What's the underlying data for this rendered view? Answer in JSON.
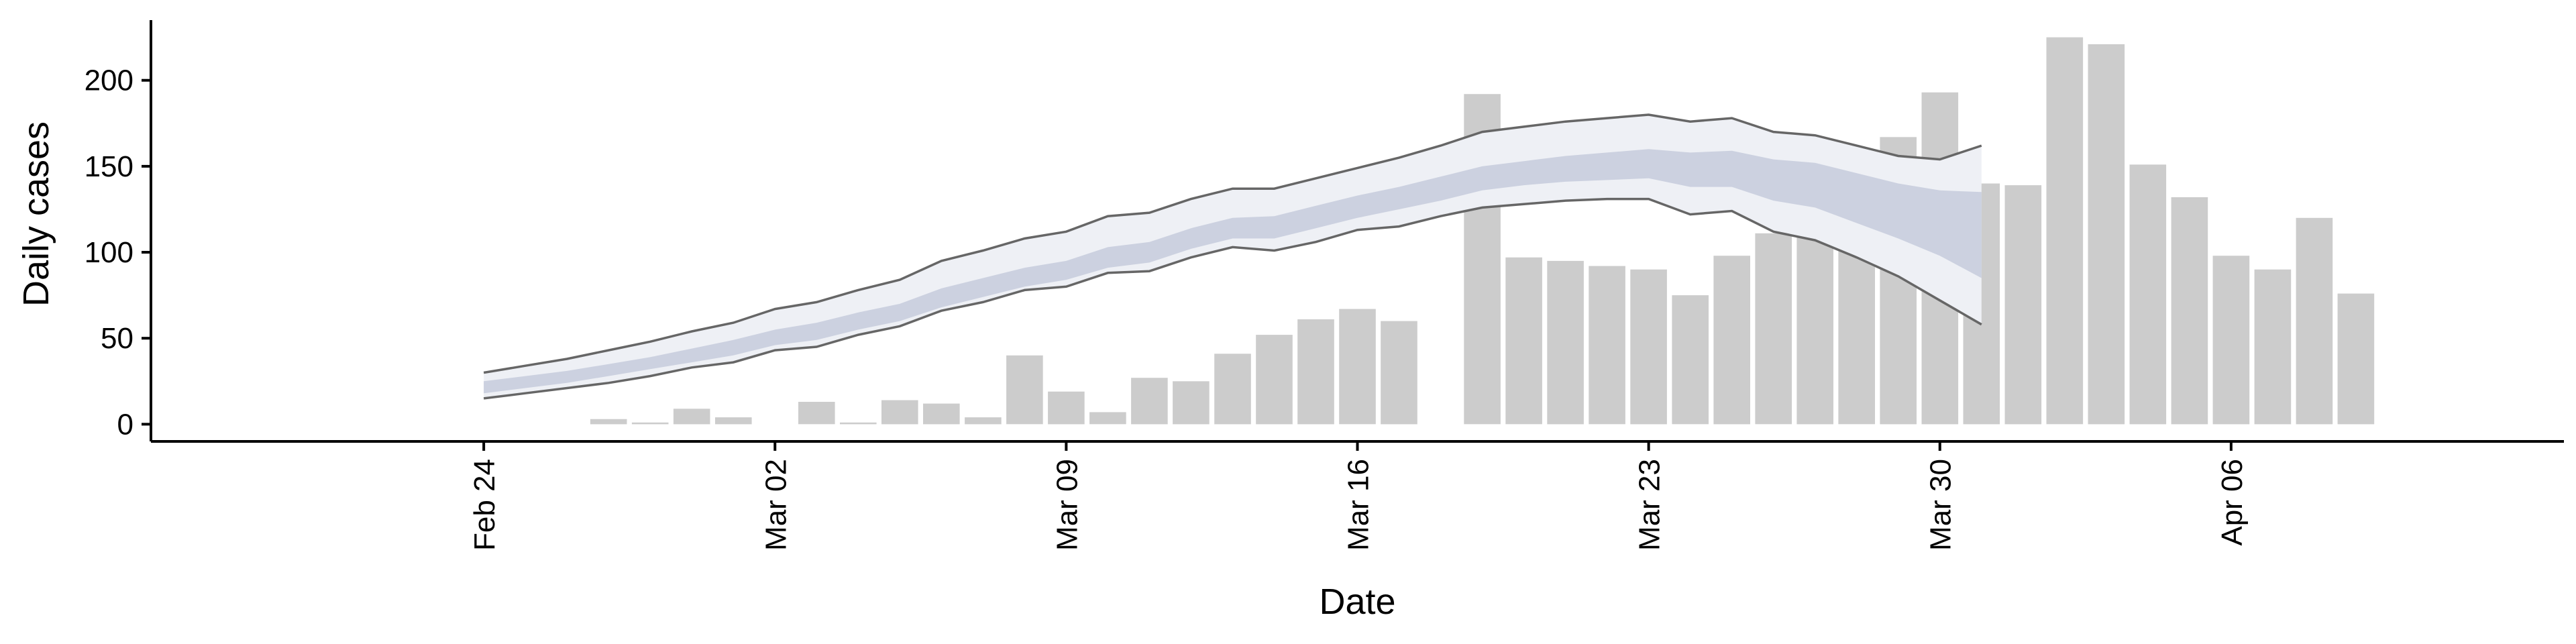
{
  "chart_data": {
    "type": "bar",
    "xlabel": "Date",
    "ylabel": "Daily cases",
    "ylim": [
      -10,
      235
    ],
    "yticks": [
      0,
      50,
      100,
      150,
      200
    ],
    "xlim": [
      "2020-02-16",
      "2020-04-14"
    ],
    "xticks": [
      {
        "date": "2020-02-24",
        "label": "Feb 24"
      },
      {
        "date": "2020-03-02",
        "label": "Mar 02"
      },
      {
        "date": "2020-03-09",
        "label": "Mar 09"
      },
      {
        "date": "2020-03-16",
        "label": "Mar 16"
      },
      {
        "date": "2020-03-23",
        "label": "Mar 23"
      },
      {
        "date": "2020-03-30",
        "label": "Mar 30"
      },
      {
        "date": "2020-04-06",
        "label": "Apr 06"
      }
    ],
    "x_tick_rotation": 90,
    "grid": false,
    "colors": {
      "bars": "#cccccc",
      "band_outer": "#eef0f5",
      "band_inner": "#c6cbdc",
      "ci_lines": "#666666"
    },
    "bars": {
      "dates": [
        "2020-02-27",
        "2020-02-28",
        "2020-02-29",
        "2020-03-01",
        "2020-03-02",
        "2020-03-03",
        "2020-03-04",
        "2020-03-05",
        "2020-03-06",
        "2020-03-07",
        "2020-03-08",
        "2020-03-09",
        "2020-03-10",
        "2020-03-11",
        "2020-03-12",
        "2020-03-13",
        "2020-03-14",
        "2020-03-15",
        "2020-03-16",
        "2020-03-17",
        "2020-03-18",
        "2020-03-19",
        "2020-03-20",
        "2020-03-21",
        "2020-03-22",
        "2020-03-23",
        "2020-03-24",
        "2020-03-25",
        "2020-03-26",
        "2020-03-27",
        "2020-03-28",
        "2020-03-29",
        "2020-03-30",
        "2020-03-31",
        "2020-04-01",
        "2020-04-02",
        "2020-04-03",
        "2020-04-04",
        "2020-04-05",
        "2020-04-06",
        "2020-04-07",
        "2020-04-08",
        "2020-04-09",
        "2020-04-10"
      ],
      "values": [
        3,
        1,
        9,
        4,
        0,
        13,
        1,
        14,
        12,
        4,
        40,
        19,
        7,
        27,
        25,
        41,
        52,
        61,
        67,
        60,
        0,
        192,
        97,
        95,
        92,
        90,
        75,
        98,
        111,
        144,
        138,
        167,
        193,
        140,
        139,
        225,
        221,
        151,
        132,
        98,
        90,
        120,
        76,
        0
      ]
    },
    "band": {
      "dates": [
        "2020-02-24",
        "2020-02-25",
        "2020-02-26",
        "2020-02-27",
        "2020-02-28",
        "2020-02-29",
        "2020-03-01",
        "2020-03-02",
        "2020-03-03",
        "2020-03-04",
        "2020-03-05",
        "2020-03-06",
        "2020-03-07",
        "2020-03-08",
        "2020-03-09",
        "2020-03-10",
        "2020-03-11",
        "2020-03-12",
        "2020-03-13",
        "2020-03-14",
        "2020-03-15",
        "2020-03-16",
        "2020-03-17",
        "2020-03-18",
        "2020-03-19",
        "2020-03-20",
        "2020-03-21",
        "2020-03-22",
        "2020-03-23",
        "2020-03-24",
        "2020-03-25",
        "2020-03-26",
        "2020-03-27",
        "2020-03-28",
        "2020-03-29",
        "2020-03-30",
        "2020-03-31"
      ],
      "upper": [
        30,
        34,
        38,
        43,
        48,
        54,
        59,
        67,
        71,
        78,
        84,
        95,
        101,
        108,
        112,
        121,
        123,
        131,
        137,
        137,
        143,
        149,
        155,
        162,
        170,
        173,
        176,
        178,
        180,
        176,
        178,
        170,
        168,
        162,
        156,
        154,
        162
      ],
      "lower": [
        15,
        18,
        21,
        24,
        28,
        33,
        36,
        43,
        45,
        52,
        57,
        66,
        71,
        78,
        80,
        88,
        89,
        97,
        103,
        101,
        106,
        113,
        115,
        121,
        126,
        128,
        130,
        131,
        131,
        122,
        124,
        112,
        107,
        97,
        86,
        72,
        58
      ],
      "inner_upper": [
        25,
        28,
        31,
        35,
        39,
        44,
        49,
        55,
        59,
        65,
        70,
        79,
        85,
        91,
        95,
        103,
        106,
        114,
        120,
        121,
        127,
        133,
        138,
        144,
        150,
        153,
        156,
        158,
        160,
        158,
        159,
        154,
        152,
        146,
        140,
        136,
        135
      ],
      "inner_lower": [
        18,
        21,
        24,
        28,
        32,
        36,
        40,
        46,
        49,
        55,
        60,
        68,
        74,
        80,
        84,
        91,
        94,
        102,
        108,
        108,
        114,
        120,
        125,
        130,
        136,
        139,
        141,
        142,
        143,
        138,
        138,
        130,
        126,
        117,
        108,
        98,
        85
      ]
    }
  }
}
